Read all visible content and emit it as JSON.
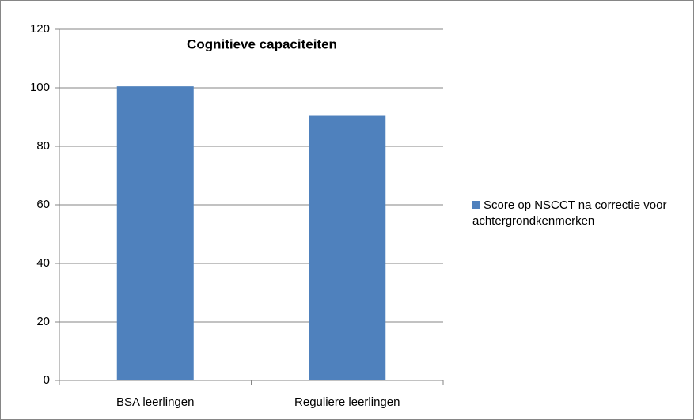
{
  "chart_data": {
    "type": "bar",
    "title": "Cognitieve capaciteiten",
    "categories": [
      "BSA leerlingen",
      "Reguliere leerlingen"
    ],
    "series": [
      {
        "name": "Score op NSCCT na correctie voor achtergrondkenmerken",
        "color": "#4f81bd",
        "values": [
          100.5,
          90.4
        ]
      }
    ],
    "ylim": [
      0,
      120
    ],
    "yticks": [
      0,
      20,
      40,
      60,
      80,
      100,
      120
    ],
    "grid": true,
    "legend": "right"
  }
}
